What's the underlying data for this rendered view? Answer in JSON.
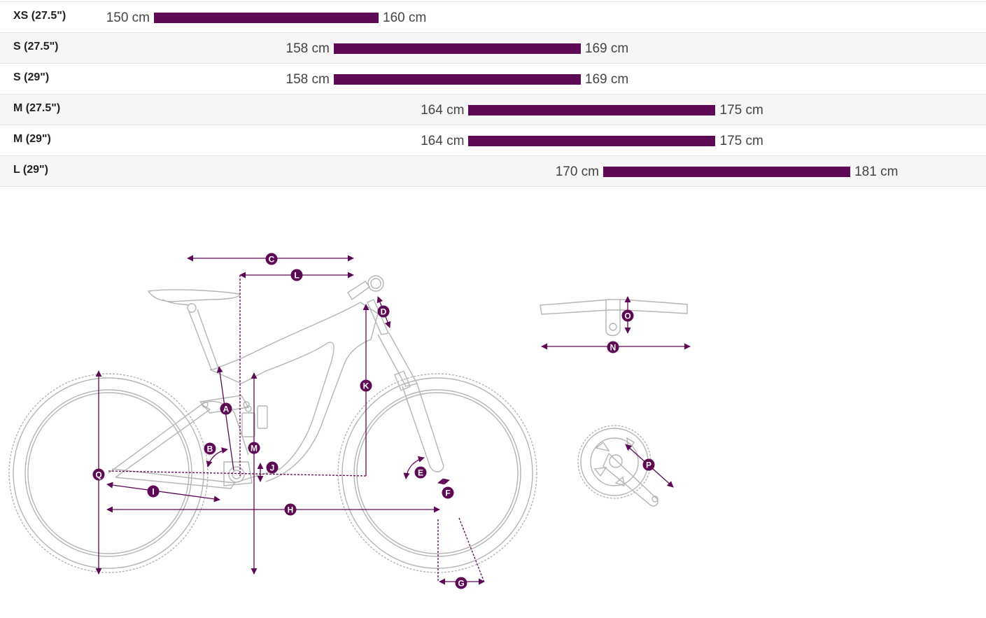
{
  "size_rows": [
    {
      "label": "XS (27.5\")",
      "min": "150 cm",
      "max": "160 cm",
      "min_cm": 150,
      "max_cm": 160
    },
    {
      "label": "S (27.5\")",
      "min": "158 cm",
      "max": "169 cm",
      "min_cm": 158,
      "max_cm": 169
    },
    {
      "label": "S (29\")",
      "min": "158 cm",
      "max": "169 cm",
      "min_cm": 158,
      "max_cm": 169
    },
    {
      "label": "M (27.5\")",
      "min": "164 cm",
      "max": "175 cm",
      "min_cm": 164,
      "max_cm": 175
    },
    {
      "label": "M (29\")",
      "min": "164 cm",
      "max": "175 cm",
      "min_cm": 164,
      "max_cm": 175
    },
    {
      "label": "L (29\")",
      "min": "170 cm",
      "max": "181 cm",
      "min_cm": 170,
      "max_cm": 181
    }
  ],
  "colors": {
    "accent": "#5e0955",
    "frame_line": "#b5b5b5"
  },
  "diagram": {
    "markers": {
      "A": "A",
      "B": "B",
      "C": "C",
      "D": "D",
      "E": "E",
      "F": "F",
      "G": "G",
      "H": "H",
      "I": "I",
      "J": "J",
      "K": "K",
      "L": "L",
      "M": "M",
      "N": "N",
      "O": "O",
      "P": "P",
      "Q": "Q"
    }
  }
}
